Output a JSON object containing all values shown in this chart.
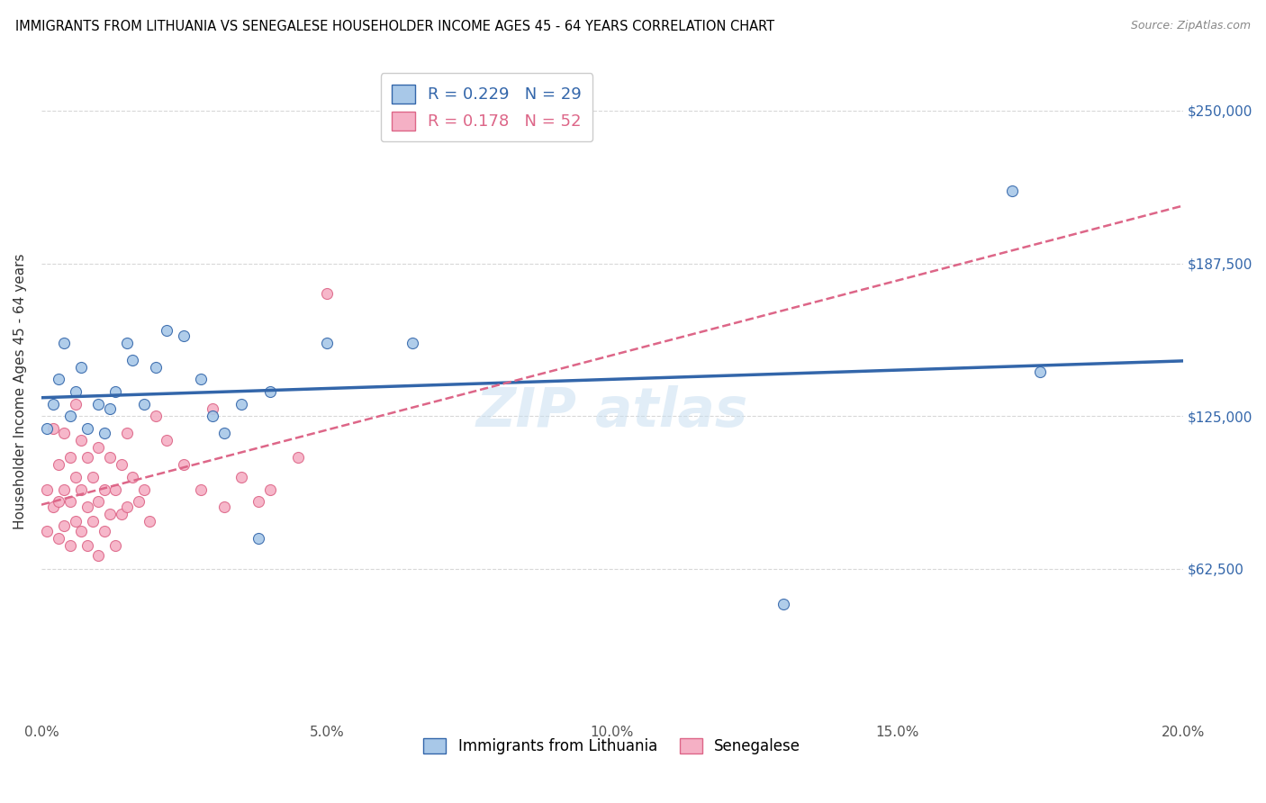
{
  "title": "IMMIGRANTS FROM LITHUANIA VS SENEGALESE HOUSEHOLDER INCOME AGES 45 - 64 YEARS CORRELATION CHART",
  "source": "Source: ZipAtlas.com",
  "ylabel": "Householder Income Ages 45 - 64 years",
  "xlim": [
    0.0,
    0.2
  ],
  "ylim": [
    0,
    270000
  ],
  "xtick_labels": [
    "0.0%",
    "5.0%",
    "10.0%",
    "15.0%",
    "20.0%"
  ],
  "xtick_values": [
    0.0,
    0.05,
    0.1,
    0.15,
    0.2
  ],
  "ytick_labels": [
    "$62,500",
    "$125,000",
    "$187,500",
    "$250,000"
  ],
  "ytick_values": [
    62500,
    125000,
    187500,
    250000
  ],
  "legend_bottom": [
    "Immigrants from Lithuania",
    "Senegalese"
  ],
  "r_lithuania": 0.229,
  "n_lithuania": 29,
  "r_senegalese": 0.178,
  "n_senegalese": 52,
  "color_lithuania": "#a8c8e8",
  "color_senegalese": "#f5b0c5",
  "line_color_lithuania": "#3366aa",
  "line_color_senegalese": "#dd6688",
  "background_color": "#ffffff",
  "grid_color": "#d8d8d8",
  "lithuania_x": [
    0.001,
    0.002,
    0.003,
    0.004,
    0.005,
    0.006,
    0.007,
    0.008,
    0.01,
    0.011,
    0.012,
    0.013,
    0.015,
    0.016,
    0.018,
    0.02,
    0.022,
    0.025,
    0.028,
    0.03,
    0.032,
    0.035,
    0.038,
    0.04,
    0.05,
    0.065,
    0.13,
    0.17,
    0.175
  ],
  "lithuania_y": [
    120000,
    130000,
    140000,
    155000,
    125000,
    135000,
    145000,
    120000,
    130000,
    118000,
    128000,
    135000,
    155000,
    148000,
    130000,
    145000,
    160000,
    158000,
    140000,
    125000,
    118000,
    130000,
    75000,
    135000,
    155000,
    155000,
    48000,
    217000,
    143000
  ],
  "senegalese_x": [
    0.001,
    0.001,
    0.002,
    0.002,
    0.003,
    0.003,
    0.003,
    0.004,
    0.004,
    0.004,
    0.005,
    0.005,
    0.005,
    0.006,
    0.006,
    0.006,
    0.007,
    0.007,
    0.007,
    0.008,
    0.008,
    0.008,
    0.009,
    0.009,
    0.01,
    0.01,
    0.01,
    0.011,
    0.011,
    0.012,
    0.012,
    0.013,
    0.013,
    0.014,
    0.014,
    0.015,
    0.015,
    0.016,
    0.017,
    0.018,
    0.019,
    0.02,
    0.022,
    0.025,
    0.028,
    0.03,
    0.032,
    0.035,
    0.038,
    0.04,
    0.045,
    0.05
  ],
  "senegalese_y": [
    95000,
    78000,
    120000,
    88000,
    105000,
    90000,
    75000,
    118000,
    95000,
    80000,
    108000,
    90000,
    72000,
    130000,
    100000,
    82000,
    115000,
    95000,
    78000,
    108000,
    88000,
    72000,
    100000,
    82000,
    112000,
    90000,
    68000,
    95000,
    78000,
    108000,
    85000,
    95000,
    72000,
    105000,
    85000,
    118000,
    88000,
    100000,
    90000,
    95000,
    82000,
    125000,
    115000,
    105000,
    95000,
    128000,
    88000,
    100000,
    90000,
    95000,
    108000,
    175000
  ]
}
